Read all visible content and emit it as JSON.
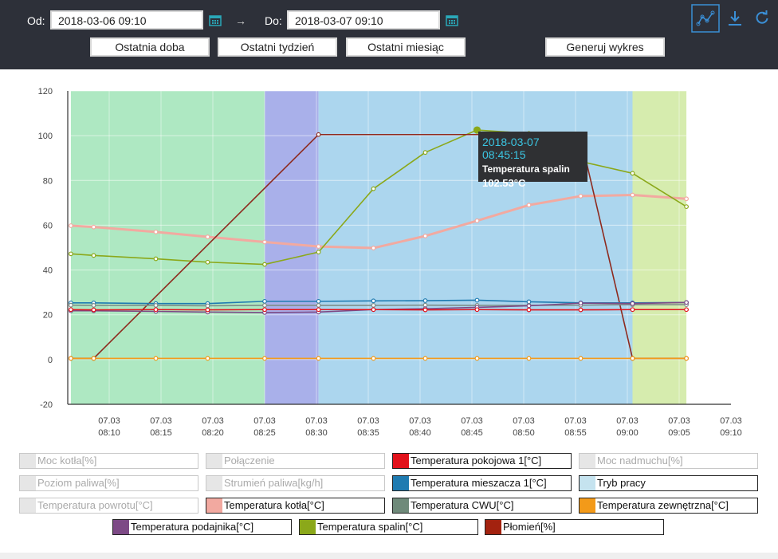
{
  "toolbar": {
    "from_label": "Od:",
    "from_value": "2018-03-06 09:10",
    "arrow": "→",
    "to_label": "Do:",
    "to_value": "2018-03-07 09:10",
    "buttons": [
      "Ostatnia doba",
      "Ostatni tydzień",
      "Ostatni miesiąc",
      "Generuj wykres"
    ],
    "icons": [
      "chart-line-icon",
      "download-icon",
      "refresh-icon"
    ],
    "accent": "#3a8fd6"
  },
  "tooltip": {
    "time": "2018-03-07 08:45:15",
    "series": "Temperatura spalin",
    "value": "102.53°C"
  },
  "chart_data": {
    "type": "line",
    "x_ticks": [
      "07.03 08:10",
      "07.03 08:15",
      "07.03 08:20",
      "07.03 08:25",
      "07.03 08:30",
      "07.03 08:35",
      "07.03 08:40",
      "07.03 08:45",
      "07.03 08:50",
      "07.03 08:55",
      "07.03 09:00",
      "07.03 09:05",
      "07.03 09:10"
    ],
    "y_ticks": [
      -20,
      0,
      20,
      40,
      60,
      80,
      100,
      120
    ],
    "ylim": [
      -20,
      120
    ],
    "xlim_minutes": [
      6,
      70
    ],
    "bands": [
      {
        "from": 6.3,
        "to": 25,
        "color": "#aee8c2"
      },
      {
        "from": 25,
        "to": 30.2,
        "color": "#a9b0ea"
      },
      {
        "from": 30.2,
        "to": 60.5,
        "color": "#acd6ee"
      },
      {
        "from": 60.5,
        "to": 65.7,
        "color": "#d6ecae"
      }
    ],
    "series": [
      {
        "name": "Temperatura kotła[°C]",
        "color": "#f2a9a0",
        "x": [
          6.3,
          8.5,
          14.5,
          19.5,
          25,
          30.2,
          35.5,
          40.5,
          45.5,
          50.5,
          55.5,
          60.5,
          65.7
        ],
        "y": [
          59.8,
          59.2,
          57,
          54.8,
          52.5,
          50.5,
          49.8,
          55.2,
          62,
          69,
          73,
          73.5,
          71.8
        ]
      },
      {
        "name": "Temperatura spalin[°C]",
        "color": "#8ba81a",
        "x": [
          6.3,
          8.5,
          14.5,
          19.5,
          25,
          30.2,
          35.5,
          40.5,
          45.5,
          50.5,
          55.5,
          60.5,
          65.7
        ],
        "y": [
          47.2,
          46.5,
          45,
          43.5,
          42.5,
          48,
          76.3,
          92.5,
          102.53,
          101,
          88.5,
          83.2,
          68.3
        ]
      },
      {
        "name": "Płomień[%]",
        "color": "#8e2a1e",
        "x": [
          6.3,
          8.5,
          30.2,
          50.5,
          55.5,
          60.5,
          65.7
        ],
        "y": [
          0.5,
          0.5,
          100.5,
          100.5,
          99,
          0.5,
          0.5
        ]
      },
      {
        "name": "Temperatura mieszacza 1[°C]",
        "color": "#1f7bb1",
        "x": [
          6.3,
          8.5,
          14.5,
          19.5,
          25,
          30.2,
          35.5,
          40.5,
          45.5,
          50.5,
          55.5,
          60.5,
          65.7
        ],
        "y": [
          25.3,
          25.3,
          25,
          25,
          26,
          26,
          26.2,
          26.3,
          26.5,
          25.8,
          25.3,
          25.3,
          25.5
        ]
      },
      {
        "name": "Temperatura CWU[°C]",
        "color": "#7d8d88",
        "x": [
          6.3,
          8.5,
          14.5,
          19.5,
          25,
          30.2,
          35.5,
          40.5,
          45.5,
          50.5,
          55.5,
          60.5,
          65.7
        ],
        "y": [
          24.3,
          24.2,
          24.2,
          24,
          24.2,
          24.2,
          24.2,
          24.3,
          24.2,
          24.2,
          24.3,
          24.5,
          24.5
        ]
      },
      {
        "name": "Temperatura podajnika[°C]",
        "color": "#7d4a86",
        "x": [
          6.3,
          8.5,
          14.5,
          19.5,
          25,
          30.2,
          35.5,
          40.5,
          45.5,
          50.5,
          55.5,
          60.5,
          65.7
        ],
        "y": [
          21.8,
          21.8,
          21.5,
          21.2,
          21,
          21.2,
          22.3,
          22.7,
          23.3,
          24,
          25.2,
          25,
          25.5
        ]
      },
      {
        "name": "Temperatura pokojowa 1[°C]",
        "color": "#e2121b",
        "x": [
          6.3,
          8.5,
          14.5,
          19.5,
          25,
          30.2,
          35.5,
          40.5,
          45.5,
          50.5,
          55.5,
          60.5,
          65.7
        ],
        "y": [
          22.3,
          22.2,
          22.3,
          22.2,
          22.3,
          22.3,
          22.3,
          22.2,
          22.3,
          22.2,
          22.2,
          22.3,
          22.3
        ]
      },
      {
        "name": "Temperatura zewnętrzna[°C]",
        "color": "#f39a19",
        "x": [
          6.3,
          8.5,
          14.5,
          19.5,
          25,
          30.2,
          35.5,
          40.5,
          45.5,
          50.5,
          55.5,
          60.5,
          65.7
        ],
        "y": [
          0.5,
          0.5,
          0.5,
          0.5,
          0.5,
          0.5,
          0.5,
          0.5,
          0.5,
          0.5,
          0.5,
          0.5,
          0.5
        ]
      }
    ],
    "legend": [
      {
        "label": "Moc kotła[%]",
        "color": "#e6e6e6",
        "active": false
      },
      {
        "label": "Połączenie",
        "color": "#e6e6e6",
        "active": false
      },
      {
        "label": "Temperatura pokojowa 1[°C]",
        "color": "#e2121b",
        "active": true
      },
      {
        "label": "Moc nadmuchu[%]",
        "color": "#e6e6e6",
        "active": false
      },
      {
        "label": "Poziom paliwa[%]",
        "color": "#e6e6e6",
        "active": false
      },
      {
        "label": "Strumień paliwa[kg/h]",
        "color": "#e6e6e6",
        "active": false
      },
      {
        "label": "Temperatura mieszacza 1[°C]",
        "color": "#1f7bb1",
        "active": true
      },
      {
        "label": "Tryb pracy",
        "color": "#c5e3ef",
        "active": true
      },
      {
        "label": "Temperatura powrotu[°C]",
        "color": "#e6e6e6",
        "active": false
      },
      {
        "label": "Temperatura kotła[°C]",
        "color": "#f2a9a0",
        "active": true
      },
      {
        "label": "Temperatura CWU[°C]",
        "color": "#6f8a7a",
        "active": true
      },
      {
        "label": "Temperatura zewnętrzna[°C]",
        "color": "#f39a19",
        "active": true
      },
      {
        "label": "Temperatura podajnika[°C]",
        "color": "#7d4a86",
        "active": true
      },
      {
        "label": "Temperatura spalin[°C]",
        "color": "#8ba81a",
        "active": true
      },
      {
        "label": "Płomień[%]",
        "color": "#a3220f",
        "active": true
      }
    ]
  }
}
